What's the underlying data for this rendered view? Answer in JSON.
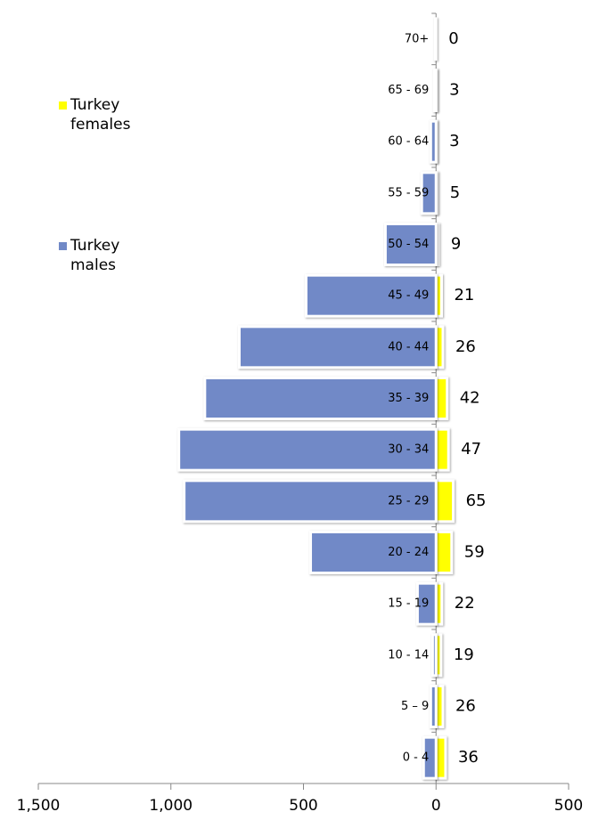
{
  "chart_data": {
    "type": "bar",
    "orientation": "horizontal",
    "stacked": false,
    "categories": [
      "0 - 4",
      "5 – 9",
      "10 - 14",
      "15 - 19",
      "20 - 24",
      "25 - 29",
      "30 - 34",
      "35 - 39",
      "40 - 44",
      "45 - 49",
      "50 - 54",
      "55 - 59",
      "60 - 64",
      "65 - 69",
      "70+"
    ],
    "series": [
      {
        "name": "Turkey females",
        "color": "#ffff00",
        "values": [
          36,
          26,
          19,
          22,
          59,
          65,
          47,
          42,
          26,
          21,
          9,
          5,
          3,
          3,
          0
        ],
        "show_labels": true
      },
      {
        "name": "Turkey males",
        "color": "#7189c7",
        "values": [
          -47,
          -20,
          -13,
          -70,
          -473,
          -950,
          -970,
          -872,
          -742,
          -490,
          -191,
          -54,
          -20,
          -7,
          -3
        ],
        "show_labels": false
      }
    ],
    "xlim": [
      -1500,
      500
    ],
    "xticks": [
      {
        "value": -1500,
        "label": "1,500"
      },
      {
        "value": -1000,
        "label": "1,000"
      },
      {
        "value": -500,
        "label": "500"
      },
      0,
      500
    ],
    "legend": "top-left"
  }
}
